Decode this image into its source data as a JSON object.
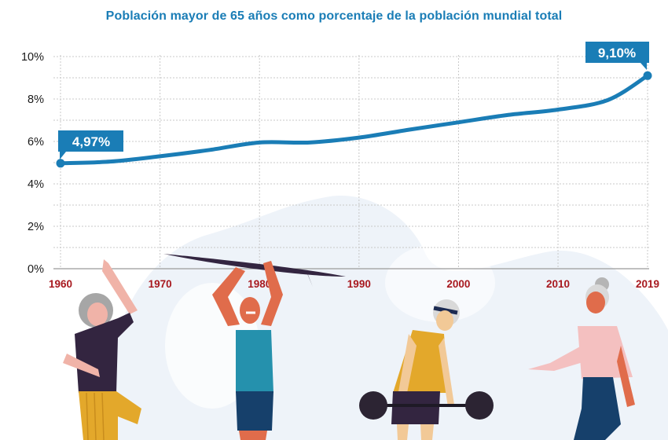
{
  "title": "Población mayor de 65 años como porcentaje de la población mundial total",
  "colors": {
    "title": "#1a7db6",
    "line": "#1a7db6",
    "callout_bg": "#1a7db6",
    "x_tick_labels": "#a8191f",
    "y_tick_labels": "#1a1a1a",
    "grid": "#c8c8c8",
    "background_blob": "#eef3f9"
  },
  "callouts": {
    "start": "4,97%",
    "end": "9,10%"
  },
  "illustrations": [
    {
      "name": "woman-yoga-pose",
      "description": "older woman with grey hair, dark top, yellow striped pants, balancing on one leg"
    },
    {
      "name": "man-holding-surfboard",
      "description": "older man in teal tank top and navy shorts holding a surfboard overhead"
    },
    {
      "name": "man-lifting-barbell",
      "description": "older man with headband in yellow tank top lifting a barbell"
    },
    {
      "name": "woman-dancing",
      "description": "older woman with grey bun in pink sweater and navy pants"
    }
  ],
  "chart_data": {
    "type": "line",
    "title": "Población mayor de 65 años como porcentaje de la población mundial total",
    "xlabel": "",
    "ylabel": "",
    "x": [
      1960,
      1965,
      1970,
      1975,
      1980,
      1985,
      1990,
      1995,
      2000,
      2005,
      2010,
      2015,
      2019
    ],
    "series": [
      {
        "name": "Población mayor de 65 años (%)",
        "values": [
          4.97,
          5.05,
          5.3,
          5.6,
          5.95,
          5.95,
          6.18,
          6.55,
          6.9,
          7.25,
          7.5,
          7.95,
          9.1
        ]
      }
    ],
    "x_tick_labels": [
      "1960",
      "1970",
      "1980",
      "1990",
      "2000",
      "2010",
      "2019"
    ],
    "y_tick_labels": [
      "0%",
      "2%",
      "4%",
      "6%",
      "8%",
      "10%"
    ],
    "ylim": [
      0,
      10
    ],
    "xlim": [
      1960,
      2019
    ],
    "grid": true,
    "grid_style": "dotted, major every 2%, minor every 1%, vertical at each labeled year",
    "annotations": [
      {
        "x": 1960,
        "y": 4.97,
        "text": "4,97%"
      },
      {
        "x": 2019,
        "y": 9.1,
        "text": "9,10%"
      }
    ],
    "legend": "none"
  }
}
